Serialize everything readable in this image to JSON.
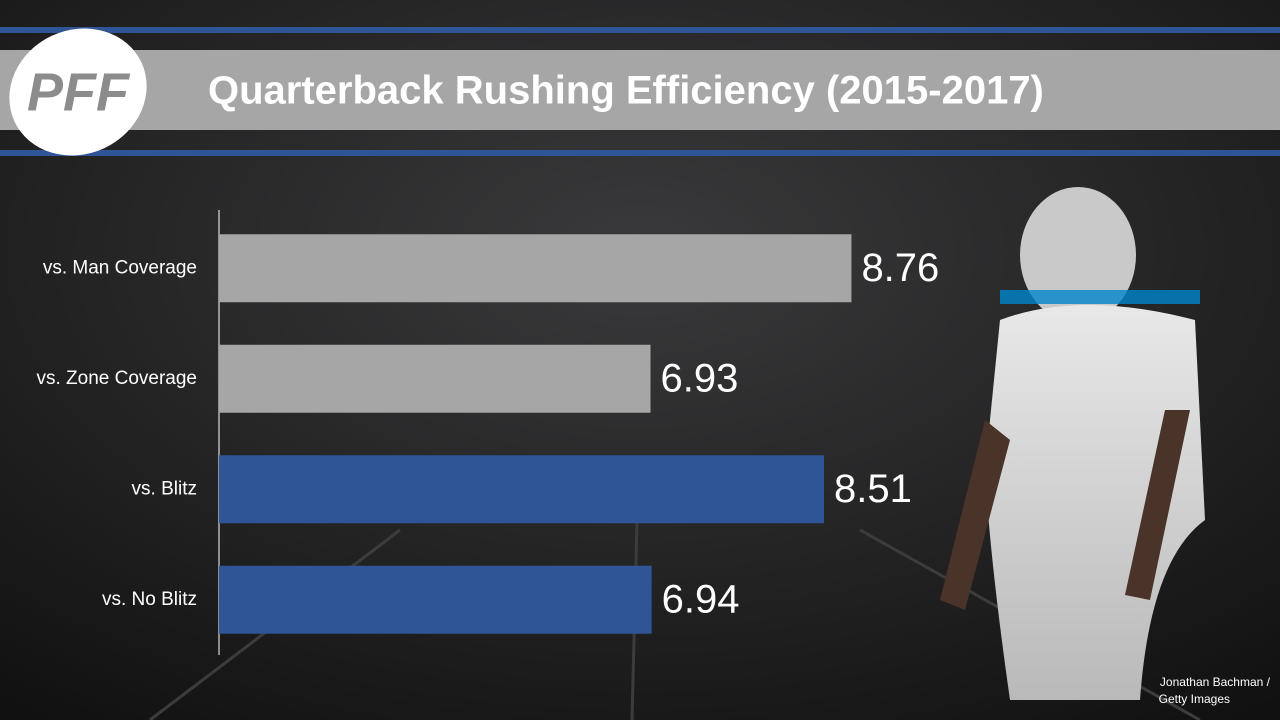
{
  "logo": "PFF",
  "chart_data": {
    "type": "hbar",
    "title": "Quarterback Rushing Efficiency (2015-2017)",
    "categories": [
      "vs. Man Coverage",
      "vs. Zone Coverage",
      "vs. Blitz",
      "vs. No Blitz"
    ],
    "values": [
      8.76,
      6.93,
      8.51,
      6.94
    ],
    "colors": [
      "#a6a6a6",
      "#a6a6a6",
      "#2f5597",
      "#2f5597"
    ],
    "xlim": [
      3,
      10
    ]
  },
  "credit": [
    "Jonathan Bachman /",
    "Getty Images"
  ]
}
